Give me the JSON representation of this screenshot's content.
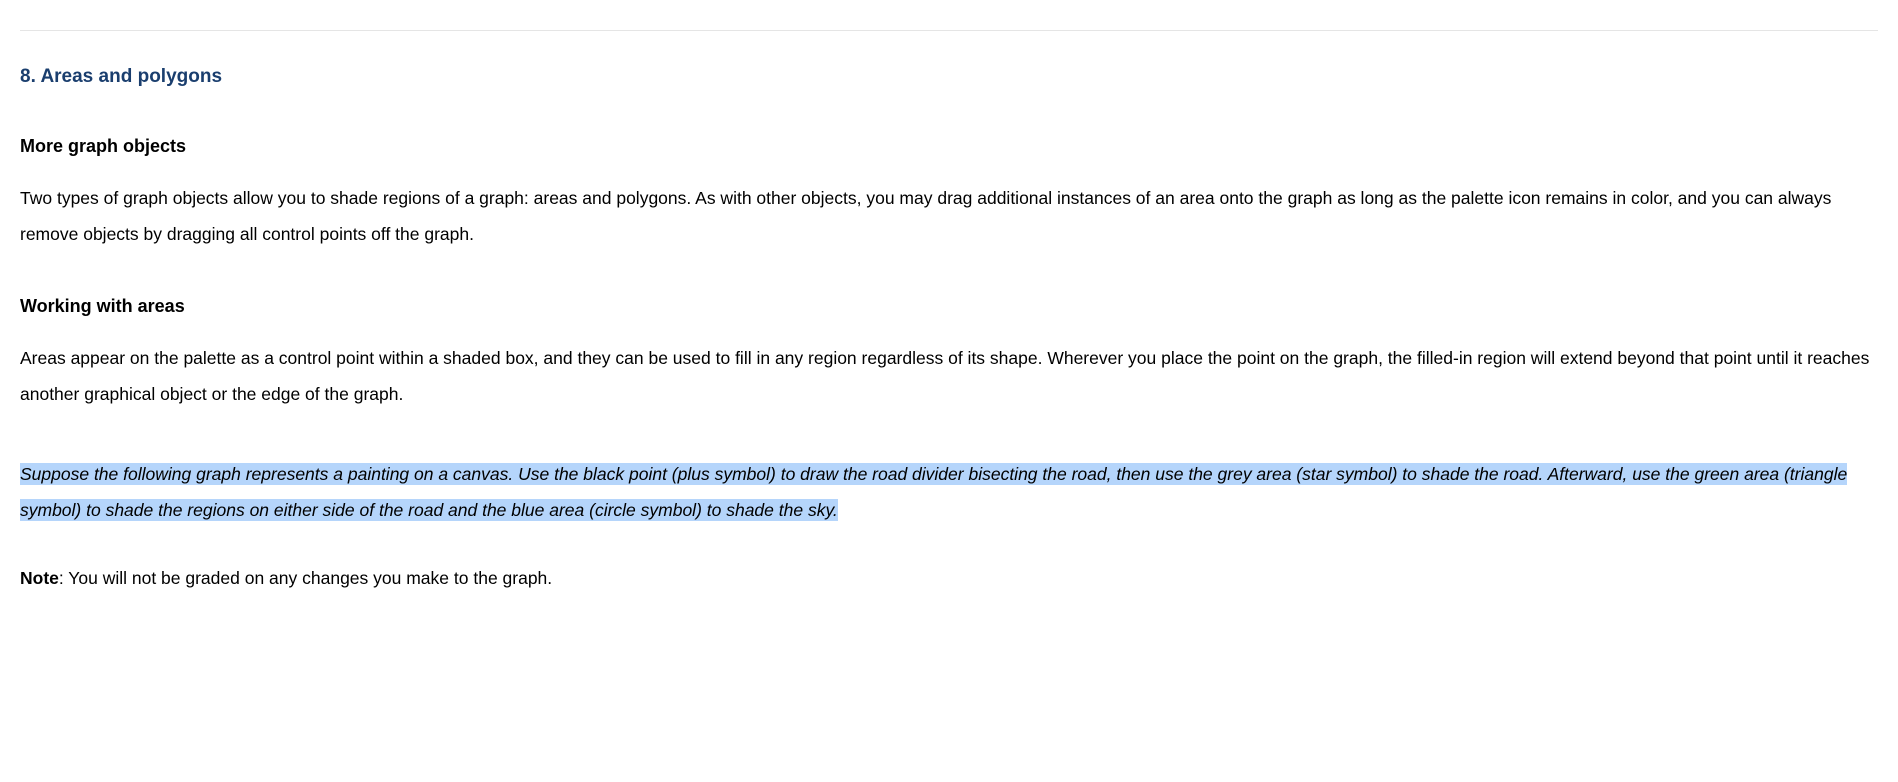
{
  "section": {
    "number": "8.",
    "title": "Areas and polygons",
    "title_color": "#1a3e6e"
  },
  "subsection1": {
    "title": "More graph objects",
    "body": "Two types of graph objects allow you to shade regions of a graph: areas and polygons. As with other objects, you may drag additional instances of an area onto the graph as long as the palette icon remains in color, and you can always remove objects by dragging all control points off the graph."
  },
  "subsection2": {
    "title": "Working with areas",
    "body": "Areas appear on the palette as a control point within a shaded box, and they can be used to fill in any region regardless of its shape. Wherever you place the point on the graph, the filled-in region will extend beyond that point until it reaches another graphical object or the edge of the graph."
  },
  "instruction": {
    "text": "Suppose the following graph represents a painting on a canvas. Use the black point (plus symbol) to draw the road divider bisecting the road, then use the grey area (star symbol) to shade the road. Afterward, use the green area (triangle symbol) to shade the regions on either side of the road and the blue area (circle symbol) to shade the sky.",
    "highlight_color": "#b5d5fb"
  },
  "note": {
    "label": "Note",
    "text": ": You will not be graded on any changes you make to the graph."
  }
}
